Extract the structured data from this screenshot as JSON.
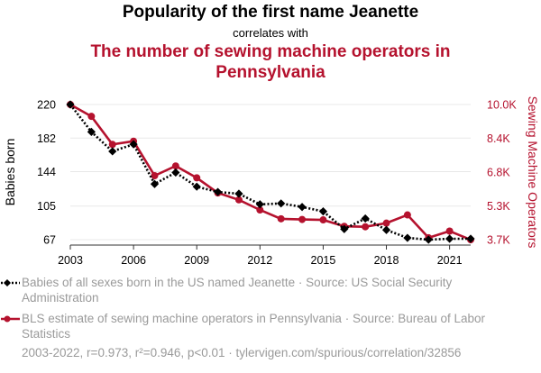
{
  "header": {
    "title": "Popularity of the first name Jeanette",
    "correlates": "correlates with",
    "subtitle": "The number of sewing machine operators in Pennsylvania"
  },
  "chart_data": {
    "type": "line",
    "x": [
      2003,
      2004,
      2005,
      2006,
      2007,
      2008,
      2009,
      2010,
      2011,
      2012,
      2013,
      2014,
      2015,
      2016,
      2017,
      2018,
      2019,
      2020,
      2021,
      2022
    ],
    "xticks": [
      2003,
      2006,
      2009,
      2012,
      2015,
      2018,
      2021
    ],
    "xlim": [
      2003,
      2022
    ],
    "ylabel_left": "Babies born",
    "ylabel_right": "Sewing Machine Operators",
    "yticks_left": [
      "220",
      "182",
      "144",
      "105",
      "67"
    ],
    "yticks_left_values": [
      220,
      182,
      144,
      105,
      67
    ],
    "ylim_left": [
      67,
      220
    ],
    "yticks_right": [
      "10.0K",
      "8.4K",
      "6.8K",
      "5.3K",
      "3.7K"
    ],
    "yticks_right_values": [
      10000,
      8433,
      6867,
      5300,
      3733
    ],
    "ylim_right": [
      3733,
      10000
    ],
    "grid": "horizontal",
    "series": [
      {
        "name": "Babies of all sexes born in the US named Jeanette · Source: US Social Security Administration",
        "axis": "left",
        "color": "#000000",
        "style": "dotted-diamond",
        "values": [
          220,
          189,
          167,
          175,
          130,
          143,
          127,
          121,
          119,
          107,
          108,
          104,
          99,
          79,
          91,
          78,
          69,
          67,
          68,
          68
        ]
      },
      {
        "name": "BLS estimate of sewing machine operators in Pennsylvania · Source: Bureau of Labor Statistics",
        "axis": "right",
        "color": "#b5122e",
        "style": "solid-circle",
        "values": [
          10000,
          9450,
          8150,
          8300,
          6700,
          7150,
          6600,
          5900,
          5580,
          5110,
          4700,
          4670,
          4650,
          4350,
          4330,
          4500,
          4880,
          3820,
          4130,
          3730
        ]
      }
    ]
  },
  "footer": {
    "text": "2003-2022, r=0.973, r²=0.946, p<0.01 · tylervigen.com/spurious/correlation/32856"
  }
}
